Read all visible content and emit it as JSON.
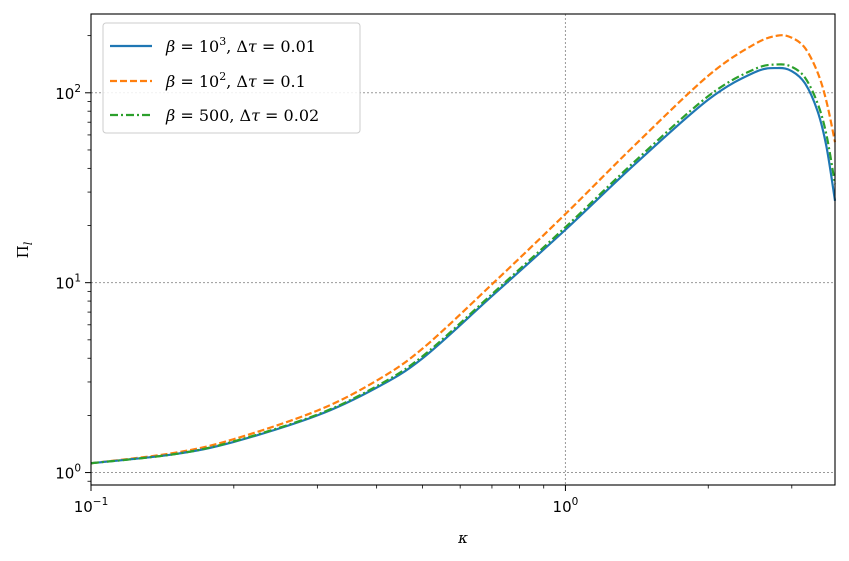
{
  "chart_data": {
    "type": "line",
    "xscale": "log",
    "yscale": "log",
    "xlim": [
      0.1,
      3.7
    ],
    "ylim": [
      0.86,
      260
    ],
    "xlabel": "κ",
    "ylabel": "Π",
    "ylabel_sub": "l",
    "grid": true,
    "legend_position": "top-left",
    "x_ticks": [
      {
        "value": 0.1,
        "base": "10",
        "exp": "−1"
      },
      {
        "value": 1.0,
        "base": "10",
        "exp": "0"
      }
    ],
    "y_ticks": [
      {
        "value": 1,
        "base": "10",
        "exp": "0"
      },
      {
        "value": 10,
        "base": "10",
        "exp": "1"
      },
      {
        "value": 100,
        "base": "10",
        "exp": "2"
      }
    ],
    "series": [
      {
        "name": "β = 10³,  Δτ = 0.01",
        "color": "#1f77b4",
        "dash": "solid",
        "x": [
          0.1,
          0.15,
          0.2,
          0.3,
          0.4,
          0.5,
          0.7,
          1.0,
          1.4,
          2.0,
          2.5,
          2.8,
          3.0,
          3.2,
          3.4,
          3.55,
          3.7
        ],
        "y": [
          1.12,
          1.25,
          1.45,
          2.0,
          2.8,
          4.0,
          8.5,
          19.0,
          42.0,
          92.0,
          128.0,
          135.0,
          130.0,
          112.0,
          80.0,
          52.0,
          27.0
        ]
      },
      {
        "name": "β = 10²,  Δτ = 0.1",
        "color": "#ff7f0e",
        "dash": "dashed",
        "x": [
          0.1,
          0.15,
          0.2,
          0.3,
          0.4,
          0.5,
          0.7,
          1.0,
          1.4,
          2.0,
          2.5,
          2.8,
          3.0,
          3.2,
          3.4,
          3.55,
          3.7
        ],
        "y": [
          1.12,
          1.27,
          1.5,
          2.12,
          3.05,
          4.5,
          9.8,
          23.0,
          53.0,
          123.0,
          180.0,
          200.0,
          195.0,
          172.0,
          128.0,
          90.0,
          55.0
        ]
      },
      {
        "name": "β = 500,  Δτ = 0.02",
        "color": "#2ca02c",
        "dash": "dashdot",
        "x": [
          0.1,
          0.15,
          0.2,
          0.3,
          0.4,
          0.5,
          0.7,
          1.0,
          1.4,
          2.0,
          2.5,
          2.8,
          3.0,
          3.2,
          3.4,
          3.55,
          3.7
        ],
        "y": [
          1.12,
          1.25,
          1.46,
          2.02,
          2.85,
          4.1,
          8.7,
          19.6,
          43.5,
          96.0,
          133.0,
          141.0,
          137.0,
          120.0,
          88.0,
          60.0,
          33.0
        ]
      }
    ],
    "legend_entries": [
      {
        "beta_val": "10",
        "beta_exp": "3",
        "tau_val": "0.01"
      },
      {
        "beta_val": "10",
        "beta_exp": "2",
        "tau_val": "0.1"
      },
      {
        "beta_val": "500",
        "beta_exp": "",
        "tau_val": "0.02"
      }
    ]
  }
}
